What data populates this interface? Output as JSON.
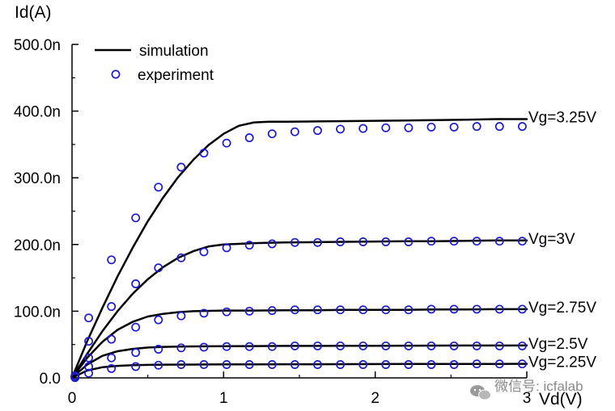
{
  "chart_data": {
    "type": "line",
    "title": "",
    "xlabel": "Vd(V)",
    "ylabel": "Id(A)",
    "xlim": [
      0,
      3
    ],
    "ylim": [
      0,
      500
    ],
    "y_unit": "n",
    "x_ticks": [
      0,
      1,
      2,
      3
    ],
    "y_ticks": [
      0,
      100,
      200,
      300,
      400,
      500
    ],
    "x_tick_labels": [
      "0",
      "1",
      "2",
      "3"
    ],
    "y_tick_labels": [
      "0.0",
      "100.0n",
      "200.0n",
      "300.0n",
      "400.0n",
      "500.0n"
    ],
    "grid": false,
    "legend_position": "top-left",
    "legend": [
      {
        "label": "simulation",
        "style": "line"
      },
      {
        "label": "experiment",
        "style": "circle"
      }
    ],
    "series": [
      {
        "name": "Vg=3.25V",
        "simulation": {
          "x": [
            0,
            0.1,
            0.2,
            0.3,
            0.4,
            0.5,
            0.6,
            0.7,
            0.8,
            0.9,
            1.0,
            1.1,
            1.2,
            1.3,
            1.4,
            1.6,
            1.8,
            2.0,
            2.2,
            2.4,
            2.6,
            2.8,
            3.0
          ],
          "y": [
            0,
            55,
            105,
            152,
            195,
            235,
            270,
            301,
            327,
            349,
            366,
            378,
            383,
            384,
            384,
            384.5,
            385,
            385.5,
            386,
            386.5,
            387,
            388,
            388
          ]
        },
        "experiment": {
          "x": [
            0.02,
            0.11,
            0.26,
            0.42,
            0.57,
            0.72,
            0.87,
            1.02,
            1.17,
            1.32,
            1.47,
            1.62,
            1.77,
            1.92,
            2.07,
            2.22,
            2.37,
            2.52,
            2.67,
            2.82,
            2.97
          ],
          "y": [
            3,
            90,
            177,
            240,
            286,
            316,
            337,
            352,
            360,
            366,
            369,
            371,
            373,
            374,
            375,
            375,
            376,
            376,
            377,
            377,
            377
          ]
        }
      },
      {
        "name": "Vg=3V",
        "simulation": {
          "x": [
            0,
            0.1,
            0.2,
            0.3,
            0.4,
            0.5,
            0.6,
            0.7,
            0.8,
            0.9,
            1.0,
            1.1,
            1.2,
            1.4,
            1.6,
            1.8,
            2.0,
            2.2,
            2.4,
            2.6,
            2.8,
            3.0
          ],
          "y": [
            0,
            36,
            70,
            100,
            126,
            148,
            166,
            180,
            190,
            197,
            200,
            201,
            202,
            203,
            203.5,
            204,
            204.5,
            205,
            205,
            205.5,
            206,
            206
          ]
        },
        "experiment": {
          "x": [
            0.02,
            0.11,
            0.26,
            0.42,
            0.57,
            0.72,
            0.87,
            1.02,
            1.17,
            1.32,
            1.47,
            1.62,
            1.77,
            1.92,
            2.07,
            2.22,
            2.37,
            2.52,
            2.67,
            2.82,
            2.97
          ],
          "y": [
            2,
            55,
            107,
            141,
            165,
            180,
            189,
            195,
            199,
            201,
            203,
            203,
            204,
            204,
            204,
            204,
            205,
            205,
            205,
            205,
            205
          ]
        }
      },
      {
        "name": "Vg=2.75V",
        "simulation": {
          "x": [
            0,
            0.1,
            0.2,
            0.3,
            0.4,
            0.5,
            0.6,
            0.7,
            0.8,
            0.9,
            1.0,
            1.2,
            1.4,
            1.6,
            1.8,
            2.0,
            2.2,
            2.4,
            2.6,
            2.8,
            3.0
          ],
          "y": [
            0,
            30,
            54,
            72,
            84,
            92,
            96,
            98.5,
            100,
            100.5,
            101,
            101,
            101.5,
            101.5,
            102,
            102,
            102,
            102.5,
            102.5,
            103,
            103
          ]
        },
        "experiment": {
          "x": [
            0.02,
            0.11,
            0.26,
            0.42,
            0.57,
            0.72,
            0.87,
            1.02,
            1.17,
            1.32,
            1.47,
            1.62,
            1.77,
            1.92,
            2.07,
            2.22,
            2.37,
            2.52,
            2.67,
            2.82,
            2.97
          ],
          "y": [
            1,
            30,
            58,
            76,
            87,
            93,
            97,
            99,
            100,
            101,
            102,
            102,
            102,
            102,
            102,
            102,
            103,
            103,
            103,
            103,
            103
          ]
        }
      },
      {
        "name": "Vg=2.5V",
        "simulation": {
          "x": [
            0,
            0.1,
            0.2,
            0.3,
            0.4,
            0.5,
            0.6,
            0.7,
            0.8,
            1.0,
            1.2,
            1.4,
            1.6,
            1.8,
            2.0,
            2.2,
            2.4,
            2.6,
            2.8,
            3.0
          ],
          "y": [
            0,
            20,
            33,
            40,
            43.5,
            45.5,
            46.5,
            47,
            47.2,
            47.5,
            47.7,
            47.9,
            48,
            48.1,
            48.2,
            48.3,
            48.4,
            48.5,
            48.6,
            48.7
          ]
        },
        "experiment": {
          "x": [
            0.02,
            0.11,
            0.26,
            0.42,
            0.57,
            0.72,
            0.87,
            1.02,
            1.17,
            1.32,
            1.47,
            1.62,
            1.77,
            1.92,
            2.07,
            2.22,
            2.37,
            2.52,
            2.67,
            2.82,
            2.97
          ],
          "y": [
            1,
            17,
            30,
            38,
            43,
            45,
            46,
            47,
            47,
            47,
            48,
            48,
            48,
            48,
            48,
            48,
            48,
            48,
            48,
            48,
            48
          ]
        }
      },
      {
        "name": "Vg=2.25V",
        "simulation": {
          "x": [
            0,
            0.1,
            0.2,
            0.3,
            0.4,
            0.5,
            0.6,
            0.8,
            1.0,
            1.2,
            1.4,
            1.6,
            1.8,
            2.0,
            2.2,
            2.4,
            2.6,
            2.8,
            3.0
          ],
          "y": [
            0,
            11,
            16,
            18,
            19,
            19.5,
            19.8,
            20,
            20.2,
            20.3,
            20.4,
            20.5,
            20.6,
            20.7,
            20.8,
            20.9,
            21,
            21,
            21.1
          ]
        },
        "experiment": {
          "x": [
            0.02,
            0.11,
            0.26,
            0.42,
            0.57,
            0.72,
            0.87,
            1.02,
            1.17,
            1.32,
            1.47,
            1.62,
            1.77,
            1.92,
            2.07,
            2.22,
            2.37,
            2.52,
            2.67,
            2.82,
            2.97
          ],
          "y": [
            0.5,
            7,
            14,
            17,
            19,
            20,
            20,
            20,
            20,
            20,
            20,
            20,
            20,
            20,
            20,
            20,
            20,
            20,
            21,
            21,
            21
          ]
        }
      }
    ],
    "colors": {
      "simulation_line": "#000000",
      "experiment_marker": "#1c1ccc",
      "axis": "#000000"
    }
  },
  "watermark": {
    "icon": "wechat-icon",
    "text": "微信号: icfalab"
  }
}
